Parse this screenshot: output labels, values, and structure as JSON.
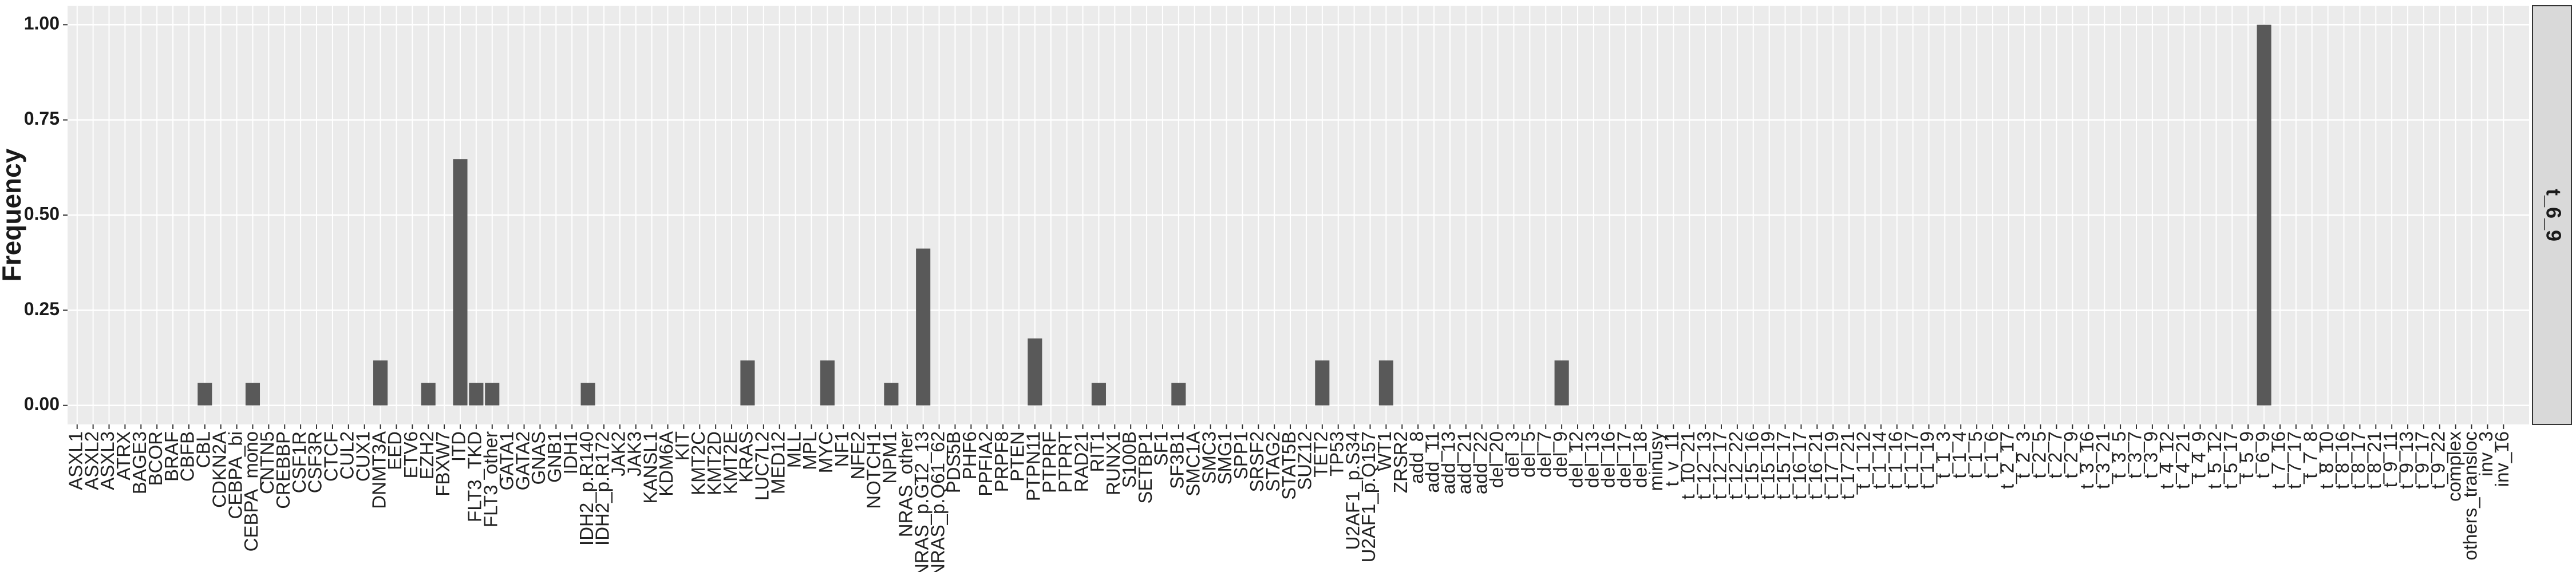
{
  "chart_data": {
    "type": "bar",
    "y_label": "Frequency",
    "facet": "t_6_9",
    "color": "#595959",
    "grid": true,
    "categories": [
      "ASXL1",
      "ASXL2",
      "ASXL3",
      "ATRX",
      "BAGE3",
      "BCOR",
      "BRAF",
      "CBFB",
      "CBL",
      "CDKN2A",
      "CEBPA_bi",
      "CEBPA_mono",
      "CNTN5",
      "CREBBP",
      "CSF1R",
      "CSF3R",
      "CTCF",
      "CUL2",
      "CUX1",
      "DNMT3A",
      "EED",
      "ETV6",
      "EZH2",
      "FBXW7",
      "ITD",
      "FLT3_TKD",
      "FLT3_other",
      "GATA1",
      "GATA2",
      "GNAS",
      "GNB1",
      "IDH1",
      "IDH2_p.R140",
      "IDH2_p.R172",
      "JAK2",
      "JAK3",
      "KANSL1",
      "KDM6A",
      "KIT",
      "KMT2C",
      "KMT2D",
      "KMT2E",
      "KRAS",
      "LUC7L2",
      "MED12",
      "MLL",
      "MPL",
      "MYC",
      "NF1",
      "NFE2",
      "NOTCH1",
      "NPM1",
      "NRAS_other",
      "NRAS_p.G12_13",
      "NRAS_p.Q61_62",
      "PDS5B",
      "PHF6",
      "PPFIA2",
      "PRPF8",
      "PTEN",
      "PTPN11",
      "PTPRF",
      "PTPRT",
      "RAD21",
      "RIT1",
      "RUNX1",
      "S100B",
      "SETBP1",
      "SF1",
      "SF3B1",
      "SMC1A",
      "SMC3",
      "SMG1",
      "SPP1",
      "SRSF2",
      "STAG2",
      "STAT5B",
      "SUZ12",
      "TET2",
      "TP53",
      "U2AF1_p.S34",
      "U2AF1_p.Q157",
      "WT1",
      "ZRSR2",
      "add_8",
      "add_11",
      "add_13",
      "add_21",
      "add_22",
      "del_20",
      "del_3",
      "del_5",
      "del_7",
      "del_9",
      "del_12",
      "del_13",
      "del_16",
      "del_17",
      "del_18",
      "minusy",
      "t_v_11",
      "t_10_21",
      "t_12_13",
      "t_12_17",
      "t_12_22",
      "t_15_16",
      "t_15_19",
      "t_15_17",
      "t_16_17",
      "t_16_21",
      "t_17_19",
      "t_17_21",
      "t_1_12",
      "t_1_14",
      "t_1_16",
      "t_1_17",
      "t_1_19",
      "t_1_3",
      "t_1_4",
      "t_1_5",
      "t_1_6",
      "t_2_17",
      "t_2_3",
      "t_2_5",
      "t_2_7",
      "t_2_9",
      "t_3_16",
      "t_3_21",
      "t_3_5",
      "t_3_7",
      "t_3_9",
      "t_4_12",
      "t_4_21",
      "t_4_9",
      "t_5_12",
      "t_5_17",
      "t_5_9",
      "t_6_9",
      "t_7_16",
      "t_7_17",
      "t_7_8",
      "t_8_10",
      "t_8_16",
      "t_8_17",
      "t_8_21",
      "t_9_11",
      "t_9_13",
      "t_9_17",
      "t_9_22",
      "complex",
      "others_transloc",
      "inv_3",
      "inv_16"
    ],
    "values": [
      0,
      0,
      0,
      0,
      0,
      0,
      0,
      0,
      0.059,
      0,
      0,
      0.059,
      0,
      0,
      0,
      0,
      0,
      0,
      0,
      0.118,
      0,
      0,
      0.059,
      0,
      0.647,
      0.059,
      0.059,
      0,
      0,
      0,
      0,
      0,
      0.059,
      0,
      0,
      0,
      0,
      0,
      0,
      0,
      0,
      0,
      0.118,
      0,
      0,
      0,
      0,
      0.118,
      0,
      0,
      0,
      0.059,
      0,
      0.412,
      0,
      0,
      0,
      0,
      0,
      0,
      0.176,
      0,
      0,
      0,
      0.059,
      0,
      0,
      0,
      0,
      0.059,
      0,
      0,
      0,
      0,
      0,
      0,
      0,
      0,
      0.118,
      0,
      0,
      0,
      0.118,
      0,
      0,
      0,
      0,
      0,
      0,
      0,
      0,
      0,
      0,
      0.118,
      0,
      0,
      0,
      0,
      0,
      0,
      0,
      0,
      0,
      0,
      0,
      0,
      0,
      0,
      0,
      0,
      0,
      0,
      0,
      0,
      0,
      0,
      0,
      0,
      0,
      0,
      0,
      0,
      0,
      0,
      0,
      0,
      0,
      0,
      0,
      0,
      0,
      0,
      0,
      0,
      0,
      0,
      0,
      1,
      0,
      0,
      0,
      0,
      0,
      0,
      0,
      0,
      0,
      0,
      0,
      0,
      0,
      0,
      0
    ],
    "ylim": [
      -0.05,
      1.05
    ],
    "yticks": [
      {
        "value": 0,
        "label": "0.00"
      },
      {
        "value": 0.25,
        "label": "0.25"
      },
      {
        "value": 0.5,
        "label": "0.50"
      },
      {
        "value": 0.75,
        "label": "0.75"
      },
      {
        "value": 1,
        "label": "1.00"
      }
    ]
  }
}
